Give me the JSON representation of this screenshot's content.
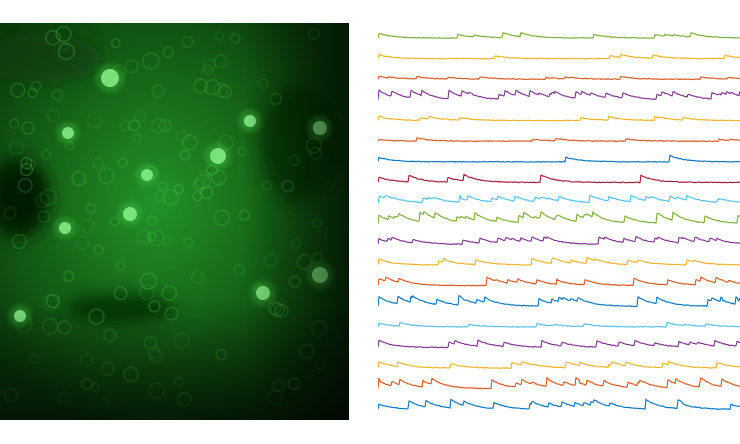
{
  "image": {
    "subject": "calcium-imaging-field-of-view",
    "background_color": "#0f5a0f",
    "dark_color": "#031803",
    "cell_color": "#4cd24c",
    "bright_cell_color": "#8af08a"
  },
  "traces": {
    "count": 19,
    "colors": [
      "#77ac30",
      "#edb120",
      "#d95319",
      "#7e2f8e",
      "#edb120",
      "#d95319",
      "#0072bd",
      "#a2142f",
      "#4dbeee",
      "#77ac30",
      "#7e2f8e",
      "#edb120",
      "#d95319",
      "#0072bd",
      "#4dbeee",
      "#7e2f8e",
      "#edb120",
      "#d95319",
      "#0072bd"
    ]
  }
}
